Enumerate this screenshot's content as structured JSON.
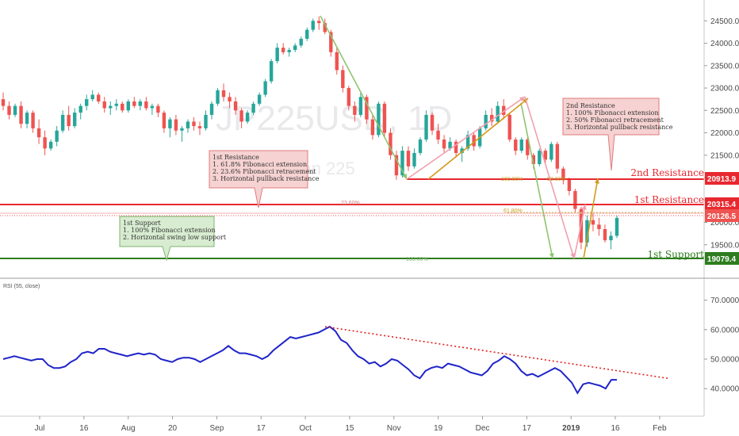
{
  "chart_data": {
    "type": "candlestick",
    "watermark": {
      "symbol": "JP225USD, 1D",
      "name": "Japan 225"
    },
    "price_axis": {
      "range": [
        19000,
        24700
      ],
      "ticks": [
        24500,
        24000,
        23500,
        23000,
        22500,
        22000,
        21500,
        21000,
        20500,
        20000,
        19500
      ]
    },
    "x_axis": {
      "ticks": [
        "Jul",
        "16",
        "Aug",
        "20",
        "Sep",
        "17",
        "Oct",
        "15",
        "Nov",
        "19",
        "Dec",
        "17",
        "2019",
        "16",
        "Feb"
      ]
    },
    "levels": [
      {
        "name": "2nd Resistance",
        "value": "20913.9",
        "color": "#e8282f"
      },
      {
        "name": "1st Resistance",
        "value": "20315.4",
        "color": "#e8282f"
      },
      {
        "name": "1st Support",
        "value": "19079.4",
        "color": "#2e7d1e"
      }
    ],
    "current_price": "20126.5",
    "fib_labels": [
      "100.00%",
      "50.00%",
      "23.60%",
      "61.80%",
      "100.00%"
    ],
    "candles": [
      [
        22750,
        22900,
        22500,
        22600
      ],
      [
        22600,
        22700,
        22300,
        22400
      ],
      [
        22400,
        22650,
        22350,
        22600
      ],
      [
        22600,
        22700,
        22100,
        22200
      ],
      [
        22200,
        22500,
        22100,
        22450
      ],
      [
        22450,
        22500,
        22000,
        22100
      ],
      [
        22100,
        22300,
        21750,
        21900
      ],
      [
        21900,
        22050,
        21500,
        21650
      ],
      [
        21650,
        21850,
        21600,
        21800
      ],
      [
        21800,
        22150,
        21700,
        22050
      ],
      [
        22050,
        22500,
        22000,
        22400
      ],
      [
        22400,
        22600,
        22050,
        22150
      ],
      [
        22150,
        22550,
        22100,
        22450
      ],
      [
        22450,
        22650,
        22300,
        22600
      ],
      [
        22600,
        22850,
        22500,
        22750
      ],
      [
        22750,
        22950,
        22700,
        22850
      ],
      [
        22850,
        22900,
        22650,
        22700
      ],
      [
        22700,
        22800,
        22450,
        22550
      ],
      [
        22550,
        22700,
        22400,
        22600
      ],
      [
        22600,
        22750,
        22500,
        22650
      ],
      [
        22650,
        22700,
        22450,
        22500
      ],
      [
        22500,
        22750,
        22450,
        22700
      ],
      [
        22700,
        22800,
        22550,
        22600
      ],
      [
        22600,
        22750,
        22500,
        22700
      ],
      [
        22700,
        22800,
        22500,
        22550
      ],
      [
        22550,
        22650,
        22400,
        22600
      ],
      [
        22600,
        22650,
        22350,
        22450
      ],
      [
        22450,
        22500,
        22000,
        22100
      ],
      [
        22100,
        22350,
        21900,
        22300
      ],
      [
        22300,
        22400,
        21950,
        22050
      ],
      [
        22050,
        22150,
        21800,
        22100
      ],
      [
        22100,
        22300,
        22000,
        22250
      ],
      [
        22250,
        22350,
        22050,
        22150
      ],
      [
        22150,
        22250,
        21950,
        22100
      ],
      [
        22100,
        22500,
        22050,
        22400
      ],
      [
        22400,
        22700,
        22300,
        22650
      ],
      [
        22650,
        23000,
        22600,
        22950
      ],
      [
        22950,
        23100,
        22700,
        22800
      ],
      [
        22800,
        22900,
        22550,
        22700
      ],
      [
        22700,
        22800,
        22400,
        22500
      ],
      [
        22500,
        22550,
        22100,
        22250
      ],
      [
        22250,
        22500,
        22200,
        22450
      ],
      [
        22450,
        22700,
        22400,
        22650
      ],
      [
        22650,
        22900,
        22600,
        22850
      ],
      [
        22850,
        23200,
        22800,
        23150
      ],
      [
        23150,
        23650,
        23100,
        23600
      ],
      [
        23600,
        24000,
        23550,
        23900
      ],
      [
        23900,
        24000,
        23750,
        23800
      ],
      [
        23800,
        23900,
        23700,
        23850
      ],
      [
        23850,
        24000,
        23800,
        23950
      ],
      [
        23950,
        24150,
        23900,
        24100
      ],
      [
        24100,
        24350,
        24050,
        24300
      ],
      [
        24300,
        24550,
        24250,
        24500
      ],
      [
        24500,
        24600,
        24300,
        24450
      ],
      [
        24450,
        24550,
        24200,
        24250
      ],
      [
        24250,
        24300,
        23700,
        23800
      ],
      [
        23800,
        23900,
        23300,
        23400
      ],
      [
        23400,
        23500,
        22900,
        23000
      ],
      [
        23000,
        23050,
        22500,
        22600
      ],
      [
        22600,
        22700,
        22250,
        22400
      ],
      [
        22400,
        22900,
        22350,
        22800
      ],
      [
        22800,
        22850,
        22200,
        22300
      ],
      [
        22300,
        22400,
        21850,
        21950
      ],
      [
        21950,
        22700,
        21900,
        22650
      ],
      [
        22650,
        22700,
        21900,
        22000
      ],
      [
        22000,
        22100,
        21400,
        21500
      ],
      [
        21500,
        21600,
        20950,
        21050
      ],
      [
        21050,
        21700,
        21000,
        21600
      ],
      [
        21600,
        21700,
        21150,
        21250
      ],
      [
        21250,
        21650,
        21200,
        21550
      ],
      [
        21550,
        21900,
        21500,
        21850
      ],
      [
        21850,
        22500,
        21800,
        22400
      ],
      [
        22400,
        22450,
        21950,
        22050
      ],
      [
        22050,
        22200,
        21750,
        21850
      ],
      [
        21850,
        21950,
        21550,
        21650
      ],
      [
        21650,
        21900,
        21600,
        21800
      ],
      [
        21800,
        21850,
        21450,
        21550
      ],
      [
        21550,
        21700,
        21350,
        21650
      ],
      [
        21650,
        22050,
        21600,
        21950
      ],
      [
        21950,
        22000,
        21600,
        21700
      ],
      [
        21700,
        22150,
        21650,
        22100
      ],
      [
        22100,
        22500,
        22050,
        22400
      ],
      [
        22400,
        22550,
        22150,
        22250
      ],
      [
        22250,
        22700,
        22200,
        22600
      ],
      [
        22600,
        22750,
        22300,
        22400
      ],
      [
        22400,
        22450,
        21800,
        21850
      ],
      [
        21850,
        21900,
        21500,
        21600
      ],
      [
        21600,
        21900,
        21550,
        21850
      ],
      [
        21850,
        21900,
        21400,
        21500
      ],
      [
        21500,
        21550,
        21200,
        21300
      ],
      [
        21300,
        21650,
        21250,
        21600
      ],
      [
        21600,
        21650,
        21300,
        21400
      ],
      [
        21400,
        21800,
        21350,
        21750
      ],
      [
        21750,
        21800,
        21100,
        21200
      ],
      [
        21200,
        21250,
        20850,
        20950
      ],
      [
        20950,
        21000,
        20600,
        20700
      ],
      [
        20700,
        20750,
        20200,
        20300
      ],
      [
        20300,
        20350,
        19400,
        19550
      ],
      [
        19550,
        20150,
        19450,
        20050
      ],
      [
        20050,
        20200,
        19800,
        19950
      ],
      [
        19950,
        20100,
        19700,
        19850
      ],
      [
        19850,
        19950,
        19550,
        19600
      ],
      [
        19600,
        19800,
        19400,
        19700
      ],
      [
        19700,
        20150,
        19650,
        20100
      ]
    ]
  },
  "notes": {
    "support1": [
      "1st Support",
      "1. 100% Fibonacci extension",
      "2. Horizontal swing low support"
    ],
    "resistance1": [
      "1st Resistance",
      "1. 61.8% Fibonacci extension",
      "2. 23.6% Fibonacci retracement",
      "3. Horizontal pullback resistance"
    ],
    "resistance2": [
      "2nd Resistance",
      "1. 100% Fibonacci extension",
      "2. 50% Fibonacci retracement",
      "3. Horizontal pullback resistance"
    ]
  },
  "rsi": {
    "label": "RSI (55, close)",
    "axis_ticks": [
      "70.0000",
      "60.0000",
      "50.0000",
      "40.0000"
    ],
    "range": [
      32,
      75
    ],
    "values": [
      50,
      50.5,
      51,
      50.5,
      50,
      49.5,
      50,
      50,
      48,
      47,
      47,
      47.5,
      49,
      50,
      52,
      52.5,
      52,
      53.5,
      53.5,
      52.5,
      52,
      51.5,
      51,
      51.5,
      52,
      51.5,
      52,
      51.5,
      50,
      49.5,
      49,
      50,
      50.5,
      50.5,
      50,
      49,
      50,
      51,
      52,
      53,
      54.5,
      53,
      52,
      52,
      51.5,
      51,
      50,
      51,
      53,
      54.5,
      56,
      57.5,
      57,
      57.5,
      58,
      58.5,
      59,
      60,
      61,
      59.5,
      56.5,
      55.5,
      53,
      51,
      50,
      48.5,
      49,
      47.5,
      48.5,
      50,
      49.5,
      48,
      46.5,
      44.5,
      43.5,
      46,
      47,
      47.5,
      47,
      48.5,
      48,
      47.5,
      46.5,
      45.5,
      45,
      44.5,
      46,
      48.5,
      49.5,
      51,
      50,
      48.5,
      46,
      44.5,
      45,
      44,
      45,
      46,
      47,
      46,
      44,
      42,
      38.5,
      41.5,
      42,
      41.5,
      41,
      40,
      43,
      43
    ]
  },
  "colors": {
    "up": "#26a69a",
    "down": "#ef5350",
    "rsi": "#1f24c8",
    "trend": "#e0201b"
  }
}
